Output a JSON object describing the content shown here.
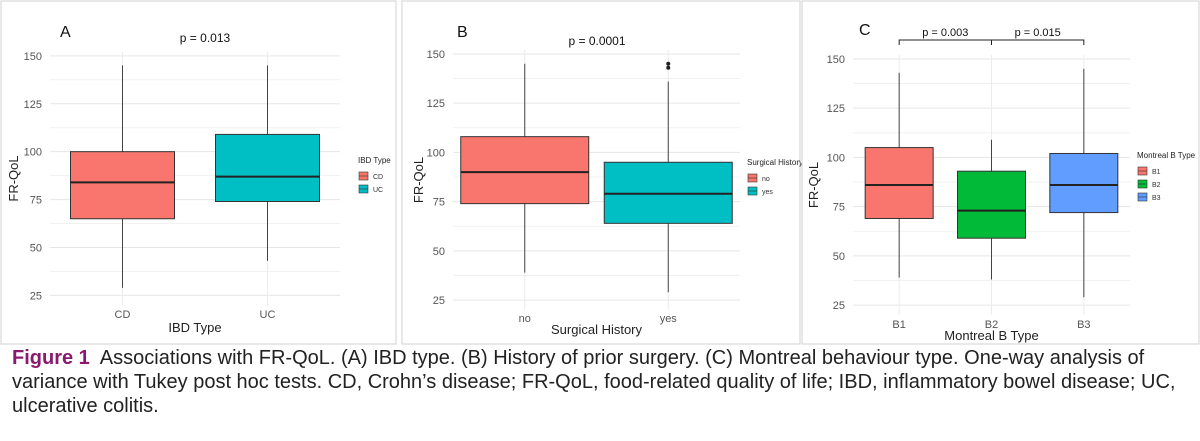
{
  "chart_data": [
    {
      "type": "box",
      "panel_label": "A",
      "pvalue_label": "p = 0.013",
      "xlabel": "IBD Type",
      "ylabel": "FR-QoL",
      "ylim": [
        20,
        152
      ],
      "yticks": [
        25,
        50,
        75,
        100,
        125,
        150
      ],
      "categories": [
        "CD",
        "UC"
      ],
      "boxes": [
        {
          "category": "CD",
          "min": 29,
          "q1": 65,
          "median": 84,
          "q3": 100,
          "max": 145,
          "color": "#F8766D",
          "outliers": []
        },
        {
          "category": "UC",
          "min": 43,
          "q1": 74,
          "median": 87,
          "q3": 109,
          "max": 145,
          "color": "#00BFC4",
          "outliers": []
        }
      ],
      "legend": {
        "title": "IBD Type",
        "entries": [
          "CD",
          "UC"
        ],
        "position": "right"
      },
      "grid": true
    },
    {
      "type": "box",
      "panel_label": "B",
      "pvalue_label": "p = 0.0001",
      "xlabel": "Surgical History",
      "ylabel": "FR-QoL",
      "ylim": [
        20,
        152
      ],
      "yticks": [
        25,
        50,
        75,
        100,
        125,
        150
      ],
      "categories": [
        "no",
        "yes"
      ],
      "boxes": [
        {
          "category": "no",
          "min": 39,
          "q1": 74,
          "median": 90,
          "q3": 108,
          "max": 145,
          "color": "#F8766D",
          "outliers": []
        },
        {
          "category": "yes",
          "min": 29,
          "q1": 64,
          "median": 79,
          "q3": 95,
          "max": 136,
          "color": "#00BFC4",
          "outliers": [
            143,
            145
          ]
        }
      ],
      "legend": {
        "title": "Surgical History",
        "entries": [
          "no",
          "yes"
        ],
        "position": "right"
      },
      "grid": true
    },
    {
      "type": "box",
      "panel_label": "C",
      "xlabel": "Montreal B Type",
      "ylabel": "FR-QoL",
      "ylim": [
        20,
        152
      ],
      "yticks": [
        25,
        50,
        75,
        100,
        125,
        150
      ],
      "categories": [
        "B1",
        "B2",
        "B3"
      ],
      "boxes": [
        {
          "category": "B1",
          "min": 39,
          "q1": 69,
          "median": 86,
          "q3": 105,
          "max": 143,
          "color": "#F8766D",
          "outliers": []
        },
        {
          "category": "B2",
          "min": 38,
          "q1": 59,
          "median": 73,
          "q3": 93,
          "max": 109,
          "color": "#00BA38",
          "outliers": []
        },
        {
          "category": "B3",
          "min": 29,
          "q1": 72,
          "median": 86,
          "q3": 102,
          "max": 145,
          "color": "#619CFF",
          "outliers": []
        }
      ],
      "comparisons": [
        {
          "from": "B1",
          "to": "B2",
          "label": "p = 0.003"
        },
        {
          "from": "B2",
          "to": "B3",
          "label": "p = 0.015"
        }
      ],
      "legend": {
        "title": "Montreal B Type",
        "entries": [
          "B1",
          "B2",
          "B3"
        ],
        "position": "right"
      },
      "grid": true
    }
  ],
  "caption": {
    "label": "Figure 1",
    "text": "Associations with FR-QoL. (A) IBD type. (B) History of prior surgery. (C) Montreal behaviour type. One-way analysis of variance with Tukey post hoc tests. CD, Crohn’s disease; FR-QoL, food-related quality of life; IBD, inflammatory bowel disease; UC, ulcerative colitis."
  }
}
